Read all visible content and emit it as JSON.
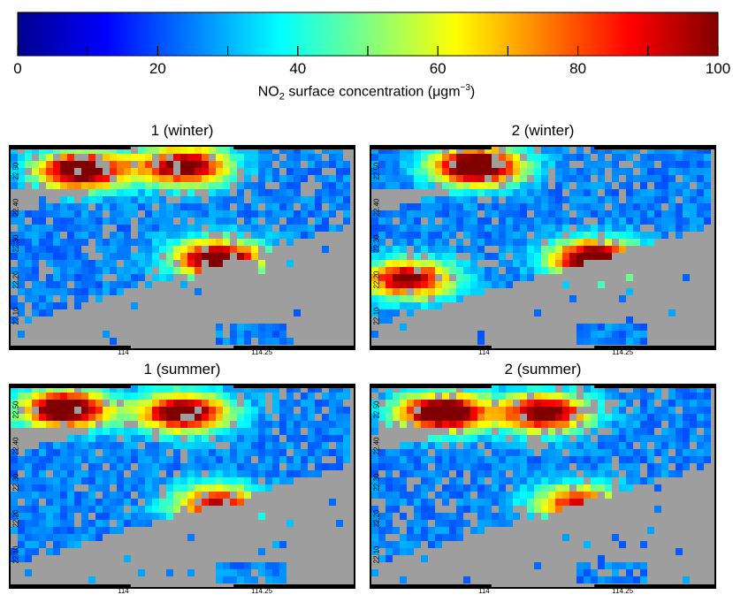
{
  "chart_data": {
    "type": "heatmap",
    "colorbar": {
      "ticks": [
        "0",
        "20",
        "40",
        "60",
        "80",
        "100"
      ],
      "label_main": "NO",
      "label_sub": "2",
      "label_rest": " surface concentration (μgm",
      "label_sup": "−3",
      "label_end": ")",
      "range": [
        0,
        100
      ],
      "colormap": "jet"
    },
    "panels": [
      {
        "title": "1 (winter)",
        "yticks": [
          "22.10",
          "22.20",
          "22.30",
          "22.40",
          "22.50"
        ],
        "xticks": [
          "114",
          "114.25"
        ],
        "hotspots": [
          {
            "x": 0.2,
            "y": 0.1,
            "v": 95
          },
          {
            "x": 0.5,
            "y": 0.08,
            "v": 85
          },
          {
            "x": 0.6,
            "y": 0.55,
            "v": 90
          }
        ]
      },
      {
        "title": "2 (winter)",
        "yticks": [
          "22.10",
          "22.20",
          "22.30",
          "22.40",
          "22.50"
        ],
        "xticks": [
          "114",
          "114.25"
        ],
        "hotspots": [
          {
            "x": 0.3,
            "y": 0.08,
            "v": 100
          },
          {
            "x": 0.65,
            "y": 0.55,
            "v": 95
          },
          {
            "x": 0.1,
            "y": 0.65,
            "v": 80
          }
        ]
      },
      {
        "title": "1 (summer)",
        "yticks": [
          "22.10",
          "22.20",
          "22.30",
          "22.40",
          "22.50"
        ],
        "xticks": [
          "114",
          "114.25"
        ],
        "hotspots": [
          {
            "x": 0.15,
            "y": 0.1,
            "v": 95
          },
          {
            "x": 0.5,
            "y": 0.12,
            "v": 90
          },
          {
            "x": 0.6,
            "y": 0.58,
            "v": 70
          }
        ]
      },
      {
        "title": "2 (summer)",
        "yticks": [
          "22.10",
          "22.20",
          "22.30",
          "22.40",
          "22.50"
        ],
        "xticks": [
          "114",
          "114.25"
        ],
        "hotspots": [
          {
            "x": 0.2,
            "y": 0.12,
            "v": 95
          },
          {
            "x": 0.5,
            "y": 0.12,
            "v": 85
          },
          {
            "x": 0.6,
            "y": 0.58,
            "v": 65
          }
        ]
      }
    ]
  }
}
